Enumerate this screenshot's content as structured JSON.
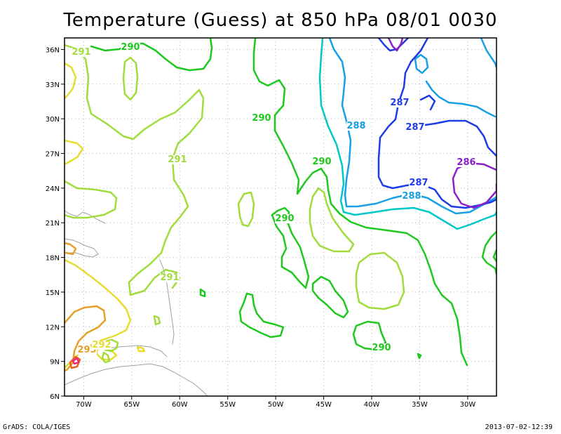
{
  "title": "Temperature (Guess) at 850 hPa 08/01 0030",
  "footer": {
    "left": "GrADS: COLA/IGES",
    "right": "2013-07-02-12:39"
  },
  "axes": {
    "x_ticks": [
      "70W",
      "65W",
      "60W",
      "55W",
      "50W",
      "45W",
      "40W",
      "35W",
      "30W"
    ],
    "y_ticks": [
      "36N",
      "33N",
      "30N",
      "27N",
      "24N",
      "21N",
      "18N",
      "15N",
      "12N",
      "9N",
      "6N"
    ],
    "lon_range": [
      "72W",
      "27W"
    ],
    "lat_range": [
      "6N",
      "37N"
    ],
    "grid": true
  },
  "contour_labels": [
    {
      "text": "291",
      "color": "#a0dc3c"
    },
    {
      "text": "290",
      "color": "#1ec81e"
    },
    {
      "text": "291",
      "color": "#a0dc3c"
    },
    {
      "text": "290",
      "color": "#1ec81e"
    },
    {
      "text": "290",
      "color": "#1ec81e"
    },
    {
      "text": "290",
      "color": "#1ec81e"
    },
    {
      "text": "291",
      "color": "#a0dc3c"
    },
    {
      "text": "290",
      "color": "#1ec81e"
    },
    {
      "text": "288",
      "color": "#18a0e6"
    },
    {
      "text": "287",
      "color": "#1e3ce6"
    },
    {
      "text": "287",
      "color": "#1e3ce6"
    },
    {
      "text": "287",
      "color": "#1e3ce6"
    },
    {
      "text": "288",
      "color": "#18a0e6"
    },
    {
      "text": "286",
      "color": "#8c1ec8"
    },
    {
      "text": "293",
      "color": "#e6a028"
    },
    {
      "text": "292",
      "color": "#e6dc32"
    }
  ],
  "colors": {
    "c286": "#8c1ec8",
    "c287": "#1e3ce6",
    "c288": "#18a0e6",
    "c289": "#00c8c8",
    "c290": "#1ec81e",
    "c291": "#a0dc3c",
    "c292": "#e6dc32",
    "c293": "#e6a028",
    "c294": "#e6641e",
    "c295": "#f0287a",
    "coast": "#a0a0a0"
  }
}
